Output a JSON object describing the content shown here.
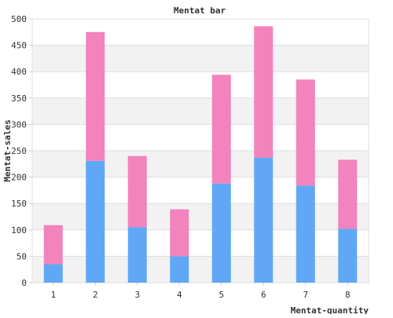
{
  "chart_data": {
    "type": "bar",
    "stacked": true,
    "title": "Mentat bar",
    "xlabel": "Mentat-quantity",
    "ylabel": "Mentat-sales",
    "categories": [
      "1",
      "2",
      "3",
      "4",
      "5",
      "6",
      "7",
      "8"
    ],
    "series": [
      {
        "values": [
          35,
          231,
          105,
          50,
          188,
          237,
          184,
          102
        ],
        "color": "#60a8f5"
      },
      {
        "values": [
          74,
          244,
          135,
          89,
          206,
          249,
          201,
          131
        ],
        "color": "#f283bc"
      }
    ],
    "ylim": [
      0,
      500
    ],
    "yticks": [
      0,
      50,
      100,
      150,
      200,
      250,
      300,
      350,
      400,
      450,
      500
    ],
    "grid": true,
    "banded_background": true,
    "band_color": "#f2f2f2",
    "grid_color": "#dddddd"
  }
}
